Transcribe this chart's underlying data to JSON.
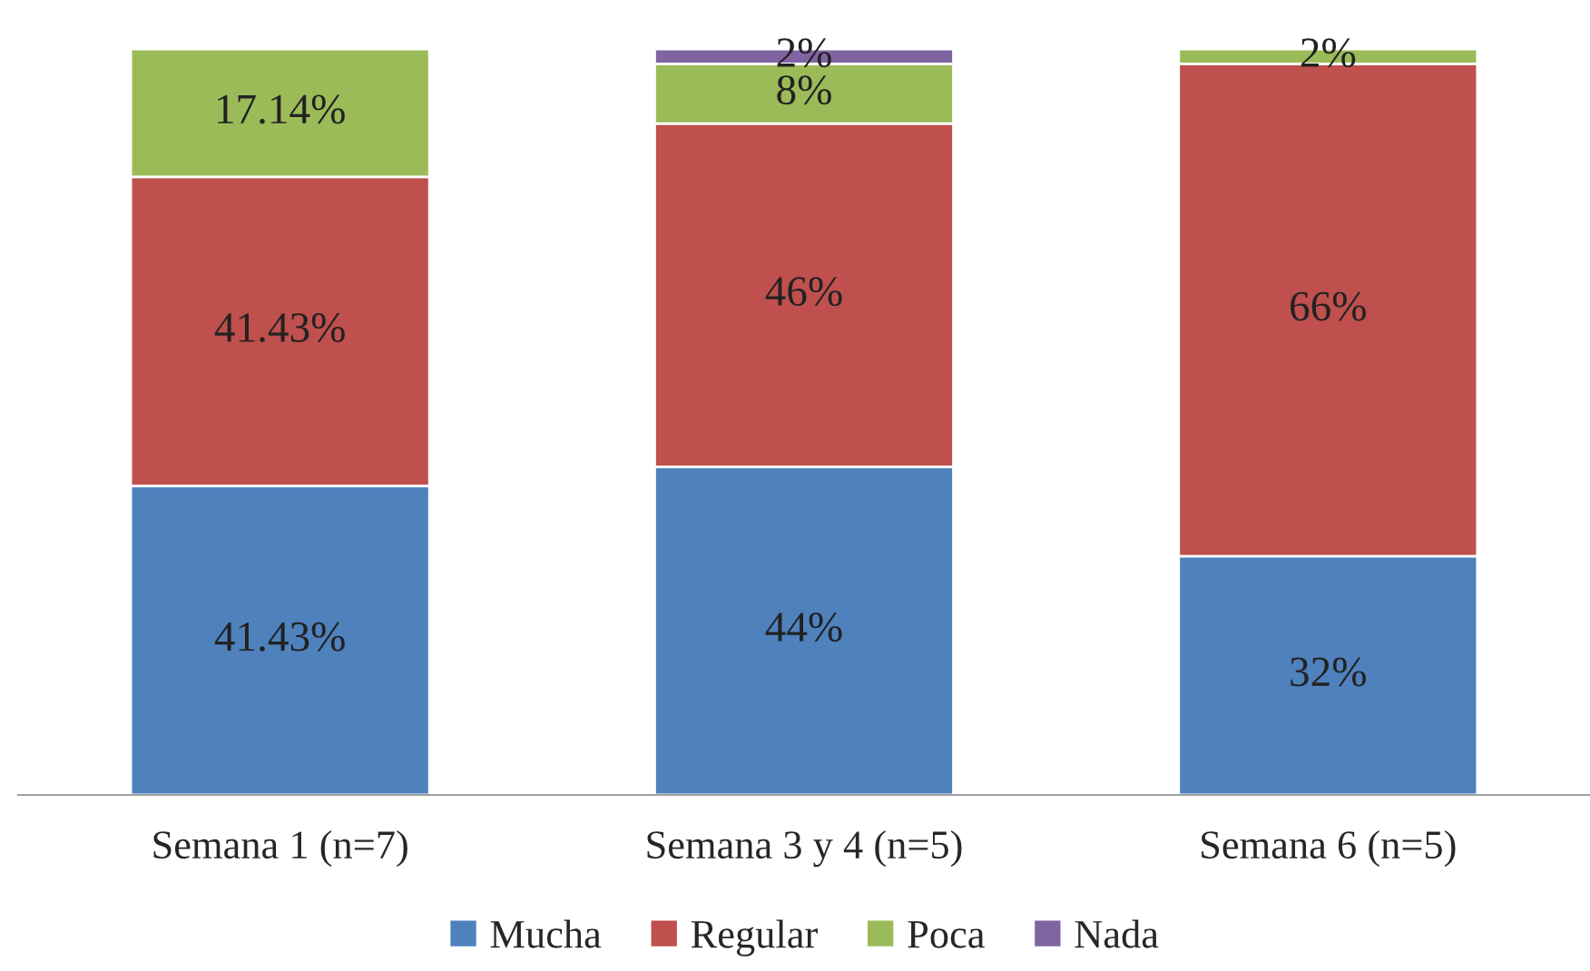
{
  "chart_data": {
    "type": "bar",
    "stacked": true,
    "categories": [
      "Semana 1 (n=7)",
      "Semana 3 y 4 (n=5)",
      "Semana 6 (n=5)"
    ],
    "series": [
      {
        "name": "Mucha",
        "color": "#4f81bd",
        "values": [
          41.43,
          44,
          32
        ],
        "value_labels": [
          "41.43%",
          "44%",
          "32%"
        ]
      },
      {
        "name": "Regular",
        "color": "#c0504d",
        "values": [
          41.43,
          46,
          66
        ],
        "value_labels": [
          "41.43%",
          "46%",
          "66%"
        ]
      },
      {
        "name": "Poca",
        "color": "#9bbb59",
        "values": [
          17.14,
          8,
          2
        ],
        "value_labels": [
          "17.14%",
          "8%",
          "2%"
        ]
      },
      {
        "name": "Nada",
        "color": "#8064a2",
        "values": [
          null,
          2,
          null
        ],
        "value_labels": [
          null,
          "2%",
          null
        ]
      }
    ],
    "legend": "bottom",
    "tick_labels": "x"
  }
}
